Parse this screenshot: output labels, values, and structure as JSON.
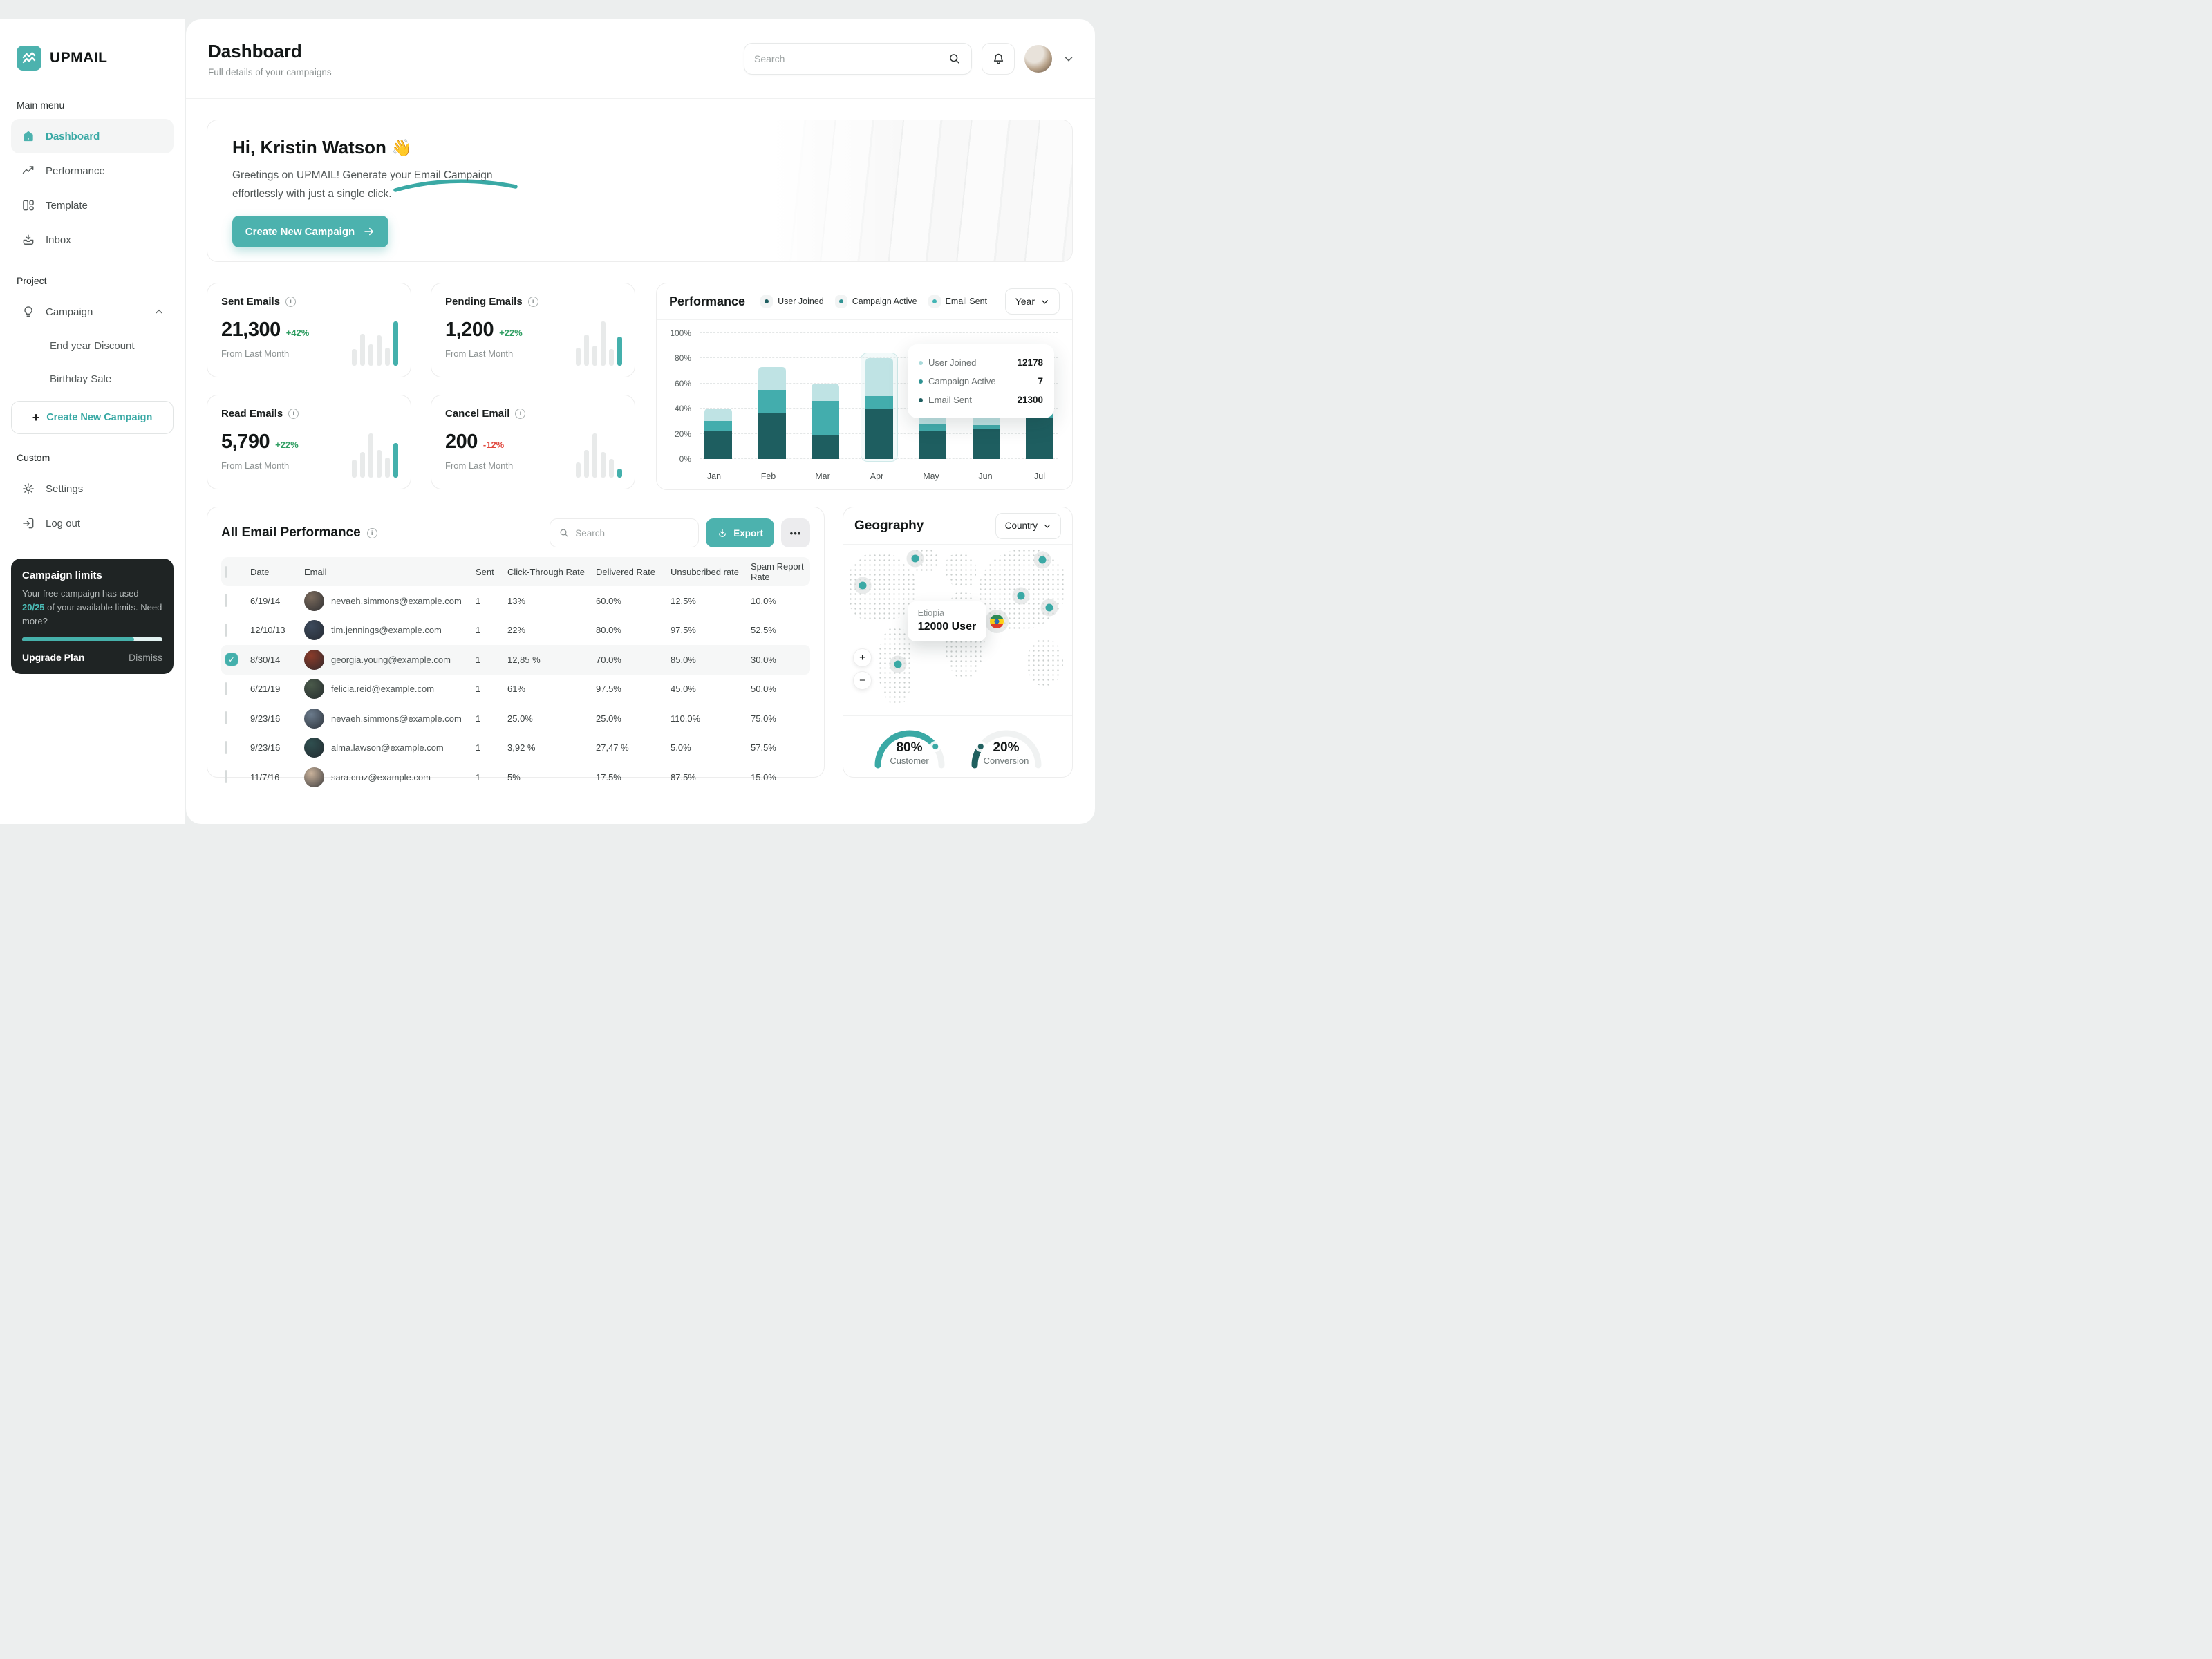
{
  "app": {
    "brand": "UPMAIL"
  },
  "colors": {
    "accent": "#4cb2ae",
    "series_dark": "#1e5e60",
    "series_mid": "#43adad",
    "series_light": "#bfe3e4",
    "positive": "#2f9e62",
    "negative": "#e0483e"
  },
  "sidebar": {
    "main_label": "Main menu",
    "main_items": [
      {
        "label": "Dashboard",
        "icon": "home",
        "active": true
      },
      {
        "label": "Performance",
        "icon": "trend",
        "active": false
      },
      {
        "label": "Template",
        "icon": "template",
        "active": false
      },
      {
        "label": "Inbox",
        "icon": "inbox",
        "active": false
      }
    ],
    "project_label": "Project",
    "campaign": {
      "label": "Campaign",
      "children": [
        "End year Discount",
        "Birthday Sale"
      ]
    },
    "create_button": "Create New Campaign",
    "custom_label": "Custom",
    "custom_items": [
      {
        "label": "Settings",
        "icon": "gear"
      },
      {
        "label": "Log out",
        "icon": "logout"
      }
    ],
    "limits": {
      "title": "Campaign limits",
      "body_prefix": "Your free campaign has used ",
      "used": "20/25",
      "body_suffix": " of your available limits. Need more?",
      "progress_pct": 80,
      "upgrade": "Upgrade Plan",
      "dismiss": "Dismiss"
    }
  },
  "header": {
    "title": "Dashboard",
    "subtitle": "Full details of your campaigns",
    "search_placeholder": "Search"
  },
  "hero": {
    "greeting": "Hi, Kristin Watson",
    "wave": "👋",
    "line1": "Greetings on UPMAIL! Generate your Email Campaign",
    "line2": "effortlessly with just a single click.",
    "cta": "Create New Campaign"
  },
  "stats": [
    {
      "title": "Sent Emails",
      "value": "21,300",
      "delta": "+42%",
      "foot": "From Last Month"
    },
    {
      "title": "Pending Emails",
      "value": "1,200",
      "delta": "+22%",
      "foot": "From Last Month"
    },
    {
      "title": "Read Emails",
      "value": "5,790",
      "delta": "+22%",
      "foot": "From Last Month"
    },
    {
      "title": "Cancel Email",
      "value": "200",
      "delta": "-12%",
      "foot": "From Last Month"
    }
  ],
  "performance_panel": {
    "title": "Performance",
    "range_selector": "Year"
  },
  "table": {
    "title": "All Email Performance",
    "search_placeholder": "Search",
    "export_label": "Export",
    "more_label": "•••",
    "columns": [
      "Date",
      "Email",
      "Sent",
      "Click-Through Rate",
      "Delivered Rate",
      "Unsubcribed rate",
      "Spam Report Rate"
    ],
    "rows": [
      {
        "date": "6/19/14",
        "email": "nevaeh.simmons@example.com",
        "sent": "1",
        "ctr": "13%",
        "delivered": "60.0%",
        "unsub": "12.5%",
        "spam": "10.0%",
        "checked": false
      },
      {
        "date": "12/10/13",
        "email": "tim.jennings@example.com",
        "sent": "1",
        "ctr": "22%",
        "delivered": "80.0%",
        "unsub": "97.5%",
        "spam": "52.5%",
        "checked": false
      },
      {
        "date": "8/30/14",
        "email": "georgia.young@example.com",
        "sent": "1",
        "ctr": "12,85 %",
        "delivered": "70.0%",
        "unsub": "85.0%",
        "spam": "30.0%",
        "checked": true
      },
      {
        "date": "6/21/19",
        "email": "felicia.reid@example.com",
        "sent": "1",
        "ctr": "61%",
        "delivered": "97.5%",
        "unsub": "45.0%",
        "spam": "50.0%",
        "checked": false
      },
      {
        "date": "9/23/16",
        "email": "nevaeh.simmons@example.com",
        "sent": "1",
        "ctr": "25.0%",
        "delivered": "25.0%",
        "unsub": "110.0%",
        "spam": "75.0%",
        "checked": false
      },
      {
        "date": "9/23/16",
        "email": "alma.lawson@example.com",
        "sent": "1",
        "ctr": "3,92 %",
        "delivered": "27,47 %",
        "unsub": "5.0%",
        "spam": "57.5%",
        "checked": false
      },
      {
        "date": "11/7/16",
        "email": "sara.cruz@example.com",
        "sent": "1",
        "ctr": "5%",
        "delivered": "17.5%",
        "unsub": "87.5%",
        "spam": "15.0%",
        "checked": false
      }
    ]
  },
  "geography": {
    "title": "Geography",
    "filter": "Country",
    "zoom_in": "+",
    "zoom_out": "−",
    "tooltip": {
      "country": "Etiopia",
      "users": "12000 User"
    },
    "markers": [
      {
        "x": 31.5,
        "y": 8
      },
      {
        "x": 87,
        "y": 9
      },
      {
        "x": 8.5,
        "y": 24
      },
      {
        "x": 77.5,
        "y": 30
      },
      {
        "x": 90,
        "y": 37
      },
      {
        "x": 24,
        "y": 70
      },
      {
        "x": 67,
        "y": 45,
        "flag": true
      }
    ]
  },
  "chart_data": [
    {
      "id": "performance",
      "type": "bar",
      "stacked": true,
      "title": "Performance",
      "categories": [
        "Jan",
        "Feb",
        "Mar",
        "Apr",
        "May",
        "Jun",
        "Jul"
      ],
      "series": [
        {
          "name": "Email Sent",
          "color": "#1e5e60",
          "values": [
            22,
            36,
            19,
            40,
            22,
            24,
            33
          ]
        },
        {
          "name": "Campaign Active",
          "color": "#43adad",
          "values": [
            8,
            19,
            27,
            10,
            6,
            3,
            14
          ]
        },
        {
          "name": "User Joined",
          "color": "#bfe3e4",
          "values": [
            10,
            18,
            14,
            30,
            19,
            16,
            13
          ]
        }
      ],
      "legend": [
        {
          "label": "User Joined",
          "dot": "#1e5e60"
        },
        {
          "label": "Campaign Active",
          "dot": "#2f9393"
        },
        {
          "label": "Email Sent",
          "dot": "#43b5b5"
        }
      ],
      "ylim": [
        0,
        100
      ],
      "yticks": [
        "0%",
        "20%",
        "40%",
        "60%",
        "80%",
        "100%"
      ],
      "grid": "dashed-horizontal",
      "highlight_category": "Apr",
      "tooltip": {
        "rows": [
          {
            "label": "User Joined",
            "value": "12178",
            "dot": "#a9dadb"
          },
          {
            "label": "Campaign Active",
            "value": "7",
            "dot": "#2f9393"
          },
          {
            "label": "Email Sent",
            "value": "21300",
            "dot": "#1e5e60"
          }
        ]
      }
    },
    {
      "id": "spark-sent",
      "type": "sparkline",
      "card": "Sent Emails",
      "values": [
        38,
        72,
        48,
        68,
        40,
        100
      ]
    },
    {
      "id": "spark-pending",
      "type": "sparkline",
      "card": "Pending Emails",
      "values": [
        40,
        70,
        45,
        100,
        38,
        66
      ]
    },
    {
      "id": "spark-read",
      "type": "sparkline",
      "card": "Read Emails",
      "values": [
        40,
        58,
        100,
        62,
        45,
        78
      ]
    },
    {
      "id": "spark-cancel",
      "type": "sparkline",
      "card": "Cancel Email",
      "values": [
        35,
        62,
        100,
        58,
        42,
        20
      ]
    },
    {
      "id": "gauges",
      "type": "gauge",
      "items": [
        {
          "label": "Customer",
          "value": 80,
          "color": "#3aa9a5"
        },
        {
          "label": "Conversion",
          "value": 20,
          "color": "#20605f"
        }
      ]
    }
  ]
}
